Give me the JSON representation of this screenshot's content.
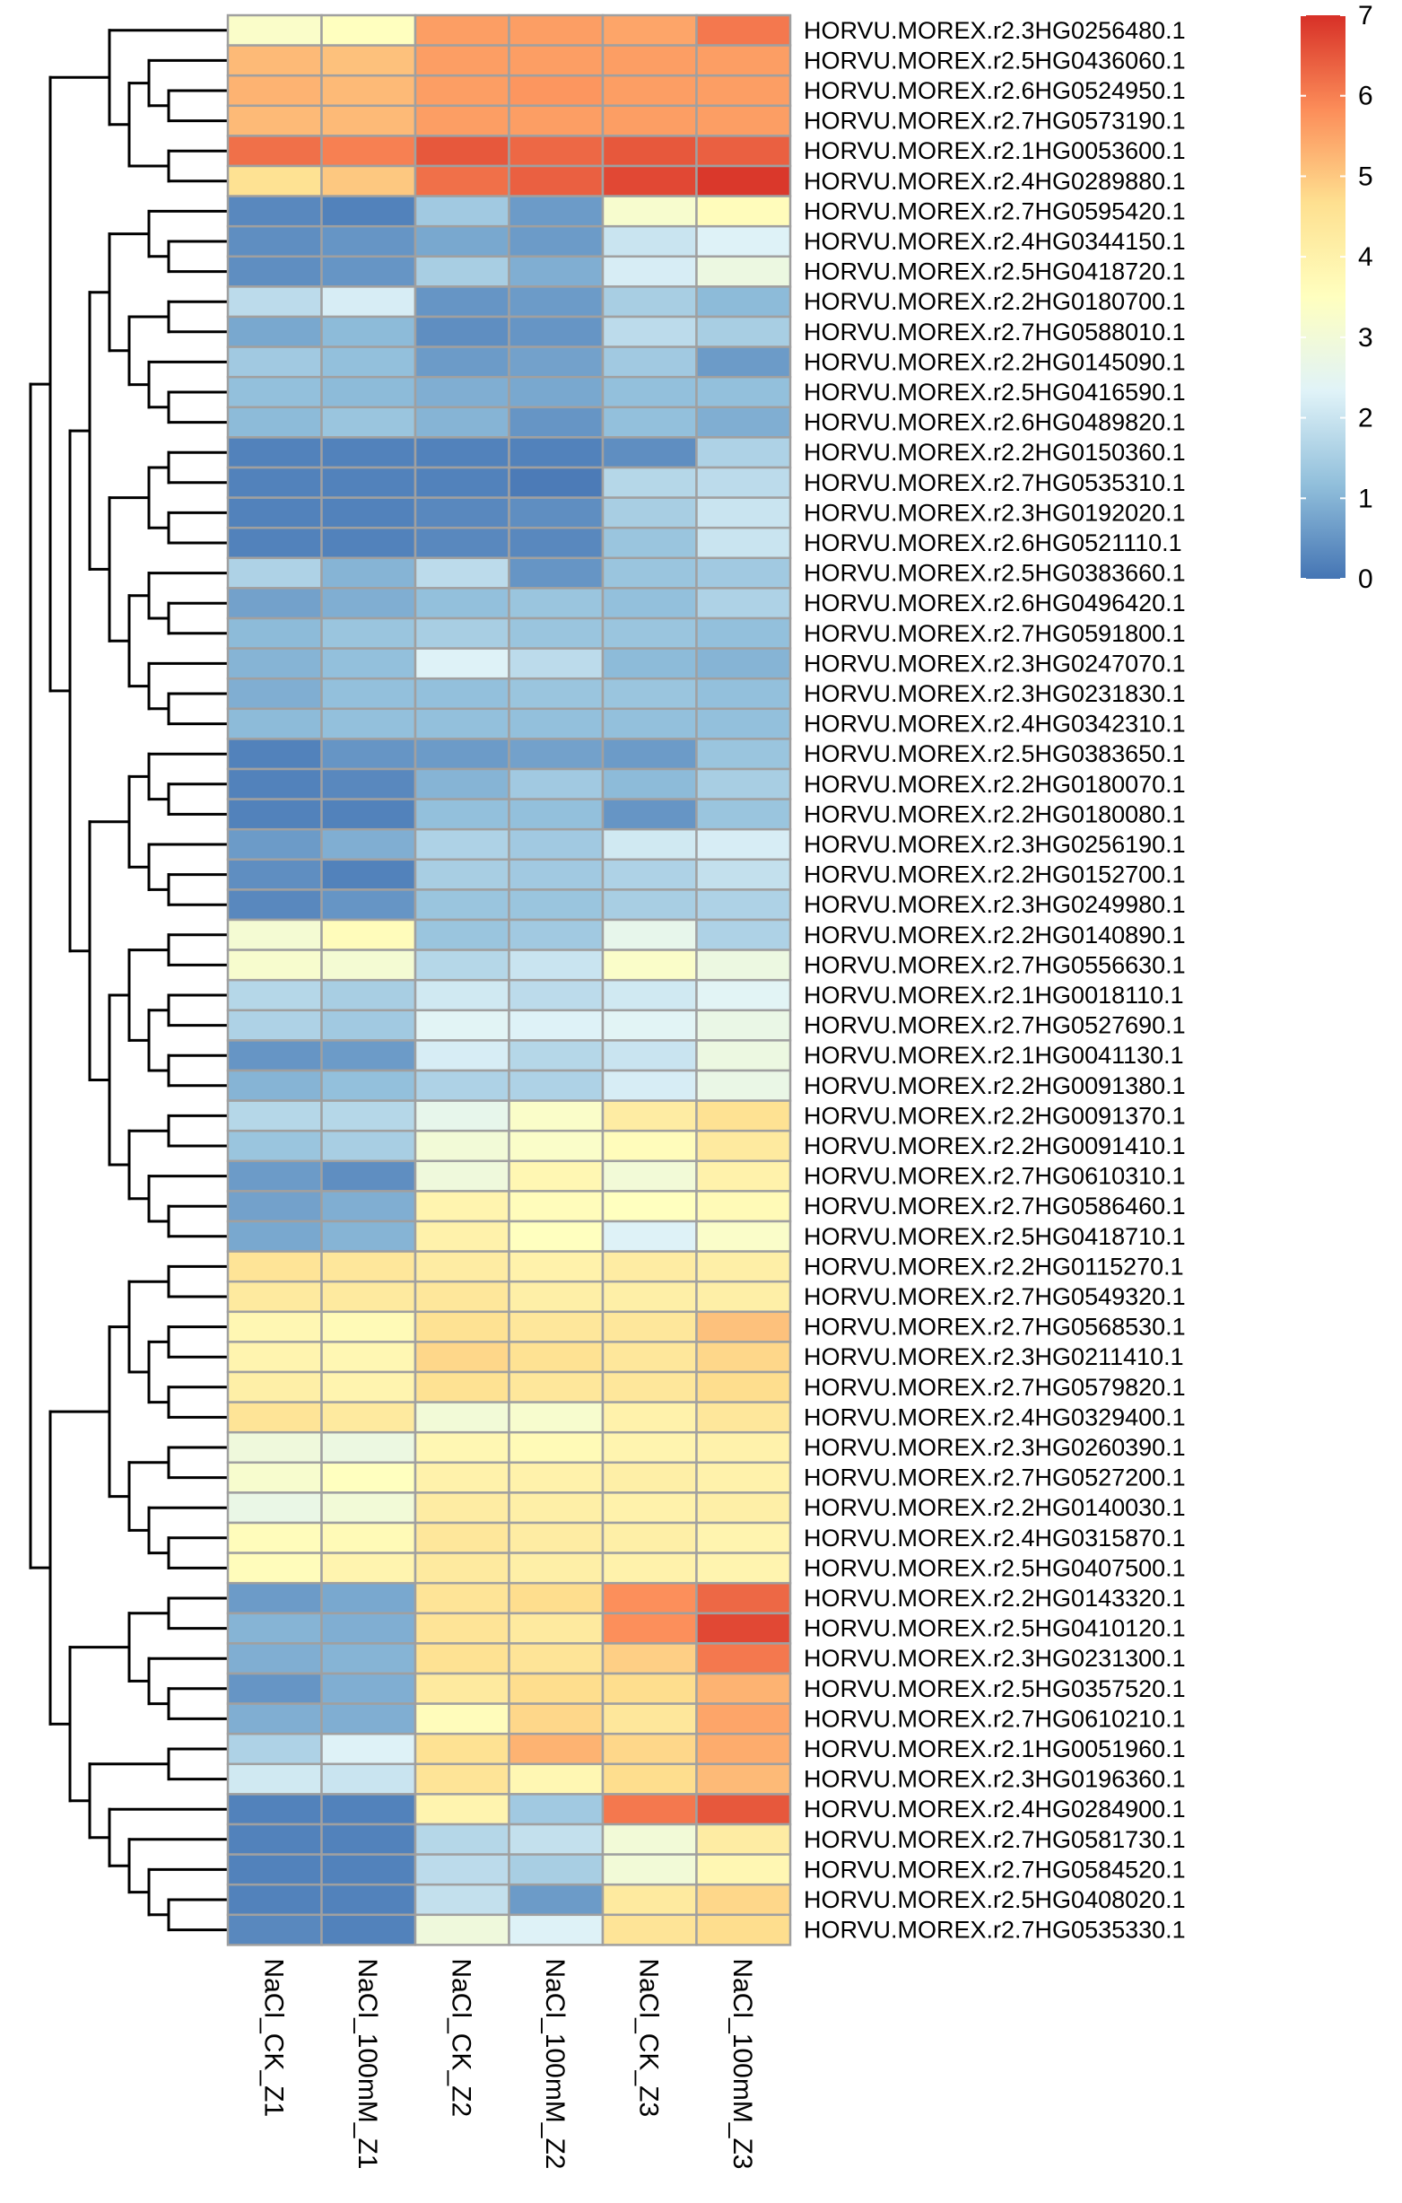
{
  "chart_data": {
    "type": "heatmap",
    "title": "",
    "xlabel": "",
    "ylabel": "",
    "columns": [
      "NaCl_CK_Z1",
      "NaCl_100mM_Z1",
      "NaCl_CK_Z2",
      "NaCl_100mM_Z2",
      "NaCl_CK_Z3",
      "NaCl_100mM_Z3"
    ],
    "rows": [
      "HORVU.MOREX.r2.3HG0256480.1",
      "HORVU.MOREX.r2.5HG0436060.1",
      "HORVU.MOREX.r2.6HG0524950.1",
      "HORVU.MOREX.r2.7HG0573190.1",
      "HORVU.MOREX.r2.1HG0053600.1",
      "HORVU.MOREX.r2.4HG0289880.1",
      "HORVU.MOREX.r2.7HG0595420.1",
      "HORVU.MOREX.r2.4HG0344150.1",
      "HORVU.MOREX.r2.5HG0418720.1",
      "HORVU.MOREX.r2.2HG0180700.1",
      "HORVU.MOREX.r2.7HG0588010.1",
      "HORVU.MOREX.r2.2HG0145090.1",
      "HORVU.MOREX.r2.5HG0416590.1",
      "HORVU.MOREX.r2.6HG0489820.1",
      "HORVU.MOREX.r2.2HG0150360.1",
      "HORVU.MOREX.r2.7HG0535310.1",
      "HORVU.MOREX.r2.3HG0192020.1",
      "HORVU.MOREX.r2.6HG0521110.1",
      "HORVU.MOREX.r2.5HG0383660.1",
      "HORVU.MOREX.r2.6HG0496420.1",
      "HORVU.MOREX.r2.7HG0591800.1",
      "HORVU.MOREX.r2.3HG0247070.1",
      "HORVU.MOREX.r2.3HG0231830.1",
      "HORVU.MOREX.r2.4HG0342310.1",
      "HORVU.MOREX.r2.5HG0383650.1",
      "HORVU.MOREX.r2.2HG0180070.1",
      "HORVU.MOREX.r2.2HG0180080.1",
      "HORVU.MOREX.r2.3HG0256190.1",
      "HORVU.MOREX.r2.2HG0152700.1",
      "HORVU.MOREX.r2.3HG0249980.1",
      "HORVU.MOREX.r2.2HG0140890.1",
      "HORVU.MOREX.r2.7HG0556630.1",
      "HORVU.MOREX.r2.1HG0018110.1",
      "HORVU.MOREX.r2.7HG0527690.1",
      "HORVU.MOREX.r2.1HG0041130.1",
      "HORVU.MOREX.r2.2HG0091380.1",
      "HORVU.MOREX.r2.2HG0091370.1",
      "HORVU.MOREX.r2.2HG0091410.1",
      "HORVU.MOREX.r2.7HG0610310.1",
      "HORVU.MOREX.r2.7HG0586460.1",
      "HORVU.MOREX.r2.5HG0418710.1",
      "HORVU.MOREX.r2.2HG0115270.1",
      "HORVU.MOREX.r2.7HG0549320.1",
      "HORVU.MOREX.r2.7HG0568530.1",
      "HORVU.MOREX.r2.3HG0211410.1",
      "HORVU.MOREX.r2.7HG0579820.1",
      "HORVU.MOREX.r2.4HG0329400.1",
      "HORVU.MOREX.r2.3HG0260390.1",
      "HORVU.MOREX.r2.7HG0527200.1",
      "HORVU.MOREX.r2.2HG0140030.1",
      "HORVU.MOREX.r2.4HG0315870.1",
      "HORVU.MOREX.r2.5HG0407500.1",
      "HORVU.MOREX.r2.2HG0143320.1",
      "HORVU.MOREX.r2.5HG0410120.1",
      "HORVU.MOREX.r2.3HG0231300.1",
      "HORVU.MOREX.r2.5HG0357520.1",
      "HORVU.MOREX.r2.7HG0610210.1",
      "HORVU.MOREX.r2.1HG0051960.1",
      "HORVU.MOREX.r2.3HG0196360.1",
      "HORVU.MOREX.r2.4HG0284900.1",
      "HORVU.MOREX.r2.7HG0581730.1",
      "HORVU.MOREX.r2.7HG0584520.1",
      "HORVU.MOREX.r2.5HG0408020.1",
      "HORVU.MOREX.r2.7HG0535330.1"
    ],
    "values": [
      [
        3.3,
        3.5,
        5.6,
        5.6,
        5.5,
        6.1
      ],
      [
        5.2,
        5.1,
        5.6,
        5.6,
        5.6,
        5.6
      ],
      [
        5.3,
        5.2,
        5.6,
        5.7,
        5.6,
        5.6
      ],
      [
        5.2,
        5.2,
        5.6,
        5.6,
        5.6,
        5.6
      ],
      [
        6.2,
        6.0,
        6.5,
        6.3,
        6.5,
        6.4
      ],
      [
        4.6,
        5.0,
        6.2,
        6.4,
        6.7,
        6.9
      ],
      [
        0.3,
        0.2,
        1.4,
        0.6,
        3.2,
        3.6
      ],
      [
        0.4,
        0.5,
        0.8,
        0.6,
        2.0,
        2.3
      ],
      [
        0.4,
        0.5,
        1.5,
        0.9,
        2.2,
        2.8
      ],
      [
        1.8,
        2.2,
        0.5,
        0.6,
        1.5,
        1.1
      ],
      [
        0.8,
        1.1,
        0.4,
        0.5,
        1.8,
        1.5
      ],
      [
        1.4,
        1.2,
        0.6,
        0.7,
        1.4,
        0.6
      ],
      [
        1.2,
        1.1,
        0.9,
        0.8,
        1.2,
        1.2
      ],
      [
        1.1,
        1.3,
        1.0,
        0.5,
        1.2,
        0.9
      ],
      [
        0.2,
        0.2,
        0.2,
        0.2,
        0.4,
        1.6
      ],
      [
        0.2,
        0.2,
        0.2,
        0.1,
        1.7,
        1.8
      ],
      [
        0.2,
        0.2,
        0.3,
        0.4,
        1.5,
        2.0
      ],
      [
        0.2,
        0.2,
        0.3,
        0.3,
        1.3,
        2.0
      ],
      [
        1.6,
        1.0,
        1.8,
        0.5,
        1.3,
        1.4
      ],
      [
        0.7,
        0.9,
        1.2,
        1.3,
        1.2,
        1.6
      ],
      [
        1.1,
        1.3,
        1.5,
        1.3,
        1.3,
        1.2
      ],
      [
        1.0,
        1.2,
        2.3,
        1.8,
        1.1,
        1.0
      ],
      [
        0.9,
        1.2,
        1.2,
        1.3,
        1.3,
        1.2
      ],
      [
        1.1,
        1.2,
        1.2,
        1.2,
        1.2,
        1.2
      ],
      [
        0.2,
        0.5,
        0.6,
        0.7,
        0.6,
        1.3
      ],
      [
        0.2,
        0.3,
        1.0,
        1.4,
        1.1,
        1.5
      ],
      [
        0.2,
        0.2,
        1.2,
        1.2,
        0.5,
        1.3
      ],
      [
        0.6,
        0.9,
        1.6,
        1.4,
        2.1,
        2.2
      ],
      [
        0.4,
        0.2,
        1.5,
        1.4,
        1.6,
        1.9
      ],
      [
        0.3,
        0.5,
        1.3,
        1.3,
        1.5,
        1.6
      ],
      [
        3.1,
        3.6,
        1.3,
        1.4,
        2.6,
        1.6
      ],
      [
        3.2,
        3.1,
        1.7,
        2.0,
        3.3,
        2.8
      ],
      [
        1.7,
        1.5,
        2.1,
        1.8,
        2.1,
        2.4
      ],
      [
        1.6,
        1.4,
        2.4,
        2.3,
        2.4,
        2.7
      ],
      [
        0.5,
        0.6,
        2.2,
        1.7,
        2.0,
        2.8
      ],
      [
        1.0,
        1.2,
        1.6,
        1.6,
        2.2,
        2.7
      ],
      [
        1.7,
        1.7,
        2.6,
        3.3,
        4.2,
        4.6
      ],
      [
        1.3,
        1.5,
        3.0,
        3.3,
        3.6,
        4.3
      ],
      [
        0.6,
        0.4,
        2.9,
        3.8,
        3.0,
        4.0
      ],
      [
        0.7,
        0.9,
        3.9,
        3.6,
        3.5,
        3.7
      ],
      [
        0.8,
        1.0,
        4.0,
        3.5,
        2.3,
        3.3
      ],
      [
        4.5,
        4.4,
        4.2,
        4.0,
        4.2,
        4.1
      ],
      [
        4.3,
        4.3,
        4.4,
        4.1,
        4.1,
        4.1
      ],
      [
        3.8,
        3.7,
        4.6,
        4.4,
        4.4,
        5.1
      ],
      [
        3.9,
        3.8,
        4.8,
        4.6,
        4.4,
        4.8
      ],
      [
        4.1,
        3.9,
        4.6,
        4.4,
        4.4,
        4.7
      ],
      [
        4.5,
        4.3,
        3.0,
        3.2,
        4.0,
        4.4
      ],
      [
        2.9,
        2.8,
        3.8,
        3.7,
        3.9,
        4.0
      ],
      [
        3.2,
        3.5,
        4.0,
        4.0,
        4.1,
        4.0
      ],
      [
        2.7,
        3.0,
        4.2,
        4.1,
        4.0,
        4.1
      ],
      [
        3.6,
        3.7,
        4.4,
        4.2,
        4.1,
        3.9
      ],
      [
        3.6,
        3.9,
        4.3,
        4.1,
        4.0,
        3.9
      ],
      [
        0.6,
        0.8,
        4.5,
        4.7,
        5.8,
        6.3
      ],
      [
        1.0,
        0.9,
        4.5,
        4.3,
        5.8,
        6.7
      ],
      [
        0.9,
        1.0,
        4.6,
        4.5,
        4.9,
        6.1
      ],
      [
        0.5,
        0.9,
        4.3,
        4.7,
        4.7,
        5.3
      ],
      [
        0.9,
        0.9,
        3.6,
        4.8,
        4.4,
        5.5
      ],
      [
        1.6,
        2.3,
        4.6,
        5.3,
        4.8,
        5.4
      ],
      [
        2.1,
        2.0,
        4.5,
        3.8,
        4.7,
        5.2
      ],
      [
        0.2,
        0.2,
        3.9,
        1.4,
        6.1,
        6.5
      ],
      [
        0.2,
        0.2,
        1.7,
        1.9,
        3.0,
        4.2
      ],
      [
        0.2,
        0.2,
        1.8,
        1.5,
        3.0,
        3.8
      ],
      [
        0.2,
        0.2,
        1.9,
        0.6,
        4.3,
        4.8
      ],
      [
        0.3,
        0.2,
        2.9,
        2.3,
        4.5,
        4.7
      ]
    ],
    "scale": {
      "min": 0,
      "max": 7,
      "ticks": [
        0,
        1,
        2,
        3,
        4,
        5,
        6,
        7
      ],
      "colors": [
        "#4575b4",
        "#91bfdb",
        "#e0f3f8",
        "#ffffbf",
        "#fee090",
        "#fc8d59",
        "#d73027"
      ]
    },
    "legend_position": "top-right",
    "row_dendrogram": true,
    "grid": true
  }
}
